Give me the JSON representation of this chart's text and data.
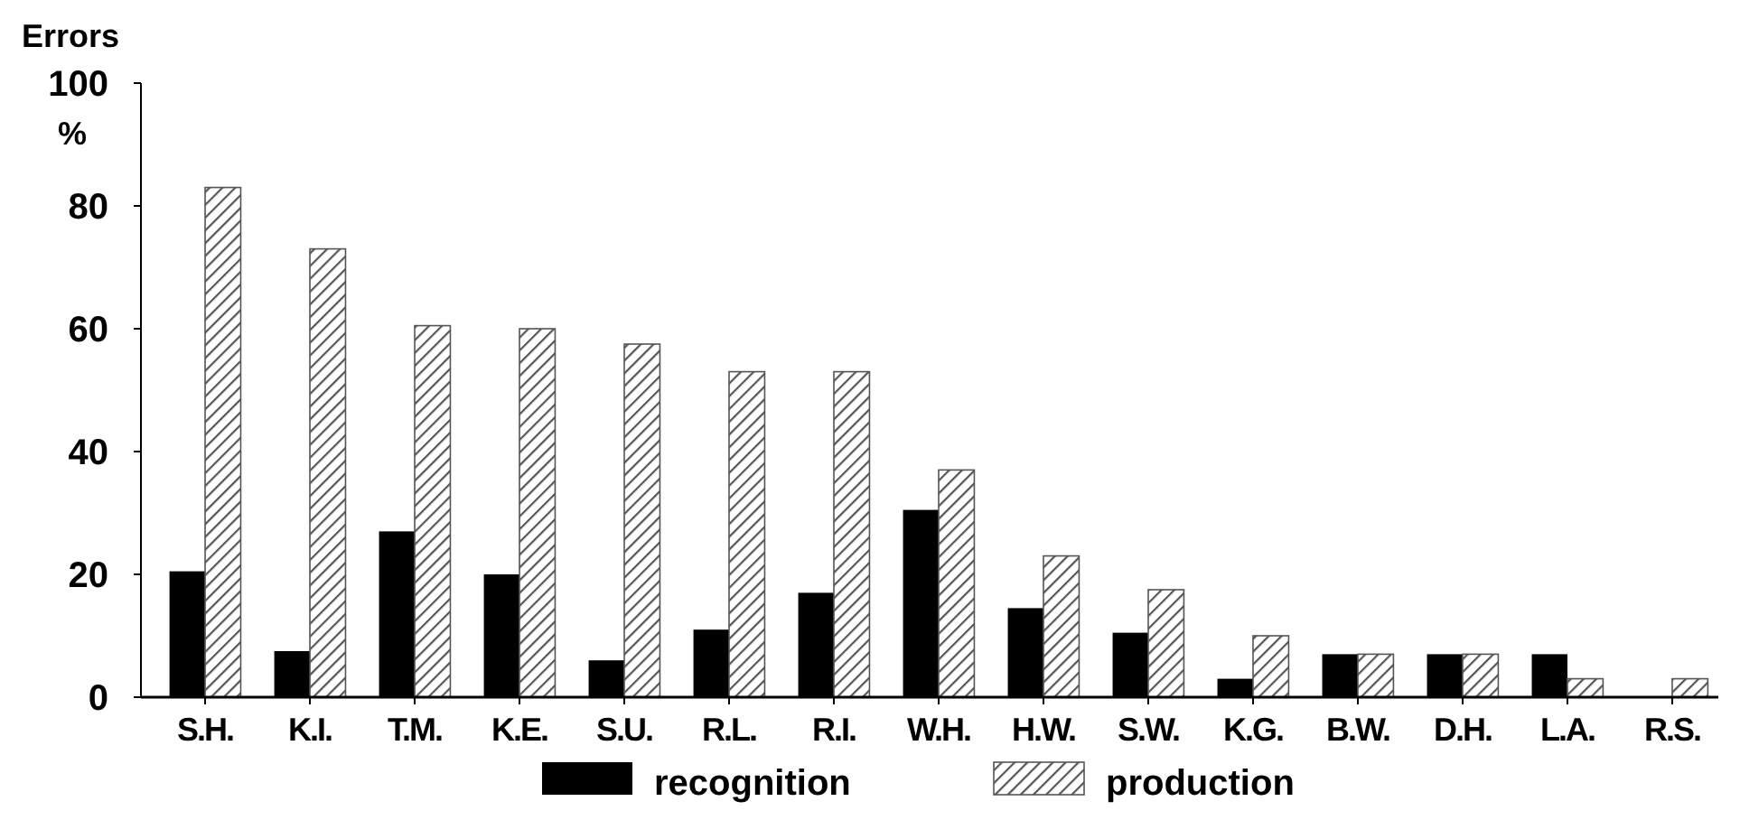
{
  "chart_data": {
    "type": "bar",
    "ylabel": "Errors",
    "annotations": [
      "%"
    ],
    "categories": [
      "S.H.",
      "K.I.",
      "T.M.",
      "K.E.",
      "S.U.",
      "R.L.",
      "R.I.",
      "W.H.",
      "H.W.",
      "S.W.",
      "K.G.",
      "B.W.",
      "D.H.",
      "L.A.",
      "R.S."
    ],
    "series": [
      {
        "name": "recognition",
        "color": "#000000",
        "values": [
          20.5,
          7.5,
          27,
          20,
          6,
          11,
          17,
          30.5,
          14.5,
          10.5,
          3,
          7,
          7,
          7,
          0
        ]
      },
      {
        "name": "production",
        "color": "#555555",
        "values": [
          83,
          73,
          60.5,
          60,
          57.5,
          53,
          53,
          37,
          23,
          17.5,
          10,
          7,
          7,
          3,
          3
        ]
      }
    ],
    "ylim": [
      0,
      100
    ],
    "yticks": [
      0,
      20,
      40,
      60,
      80,
      100
    ],
    "grid": false,
    "legend": "bottom"
  }
}
